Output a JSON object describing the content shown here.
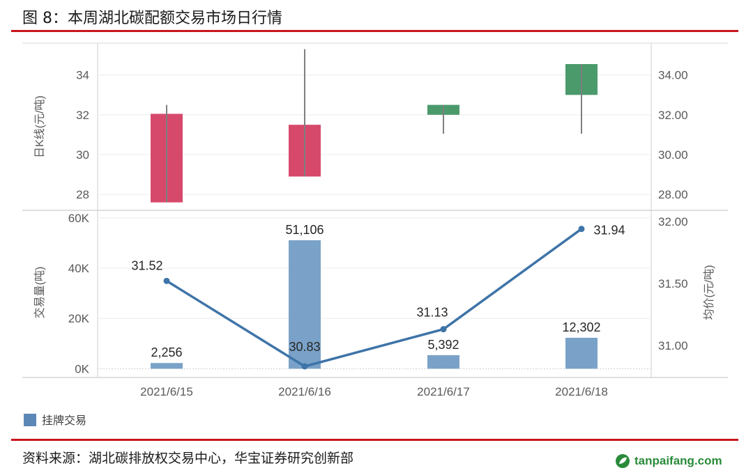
{
  "header": {
    "title": "图 8：本周湖北碳配额交易市场日行情"
  },
  "footer": {
    "source": "资料来源：湖北碳排放权交易中心，华宝证券研究创新部",
    "watermark": "tanpaifang.com"
  },
  "colors": {
    "accent_line": "#c8161d",
    "down": "#d6496b",
    "up": "#4b9a6c",
    "bar": "#7aa2c8",
    "line": "#3e74a8"
  },
  "chart_data": [
    {
      "type": "candlestick",
      "ylabel_left": "日K线(元/吨)",
      "yticks_left": [
        28,
        30,
        32,
        34
      ],
      "yticks_right": [
        "28.00",
        "30.00",
        "32.00",
        "34.00"
      ],
      "ylim": [
        27.2,
        35.6
      ],
      "categories": [
        "2021/6/15",
        "2021/6/16",
        "2021/6/17",
        "2021/6/18"
      ],
      "candles": [
        {
          "date": "2021/6/15",
          "open": 32.05,
          "close": 27.6,
          "high": 32.5,
          "low": 27.6,
          "direction": "down"
        },
        {
          "date": "2021/6/16",
          "open": 31.5,
          "close": 28.9,
          "high": 35.3,
          "low": 28.9,
          "direction": "down"
        },
        {
          "date": "2021/6/17",
          "open": 32.0,
          "close": 32.5,
          "high": 32.5,
          "low": 31.05,
          "direction": "up"
        },
        {
          "date": "2021/6/18",
          "open": 33.0,
          "close": 34.55,
          "high": 34.55,
          "low": 31.05,
          "direction": "up"
        }
      ]
    },
    {
      "type": "bar+line",
      "ylabel_left": "交易量(吨)",
      "ylabel_right": "均价(元/吨)",
      "yticks_left": [
        "0K",
        "20K",
        "40K",
        "60K"
      ],
      "yticks_left_values": [
        0,
        20000,
        40000,
        60000
      ],
      "yticks_right": [
        "31.00",
        "31.50",
        "32.00"
      ],
      "yticks_right_values": [
        31.0,
        31.5,
        32.0
      ],
      "ylim_left": [
        -3500,
        63000
      ],
      "ylim_right": [
        30.74,
        32.09
      ],
      "categories": [
        "2021/6/15",
        "2021/6/16",
        "2021/6/17",
        "2021/6/18"
      ],
      "series": [
        {
          "name": "挂牌交易",
          "type": "bar",
          "values": [
            2256,
            51106,
            5392,
            12302
          ],
          "labels": [
            "2,256",
            "51,106",
            "5,392",
            "12,302"
          ]
        },
        {
          "type": "line",
          "values": [
            31.52,
            30.83,
            31.13,
            31.94
          ],
          "labels": [
            "31.52",
            "30.83",
            "31.13",
            "31.94"
          ]
        }
      ],
      "legend": "bottom-left"
    }
  ]
}
